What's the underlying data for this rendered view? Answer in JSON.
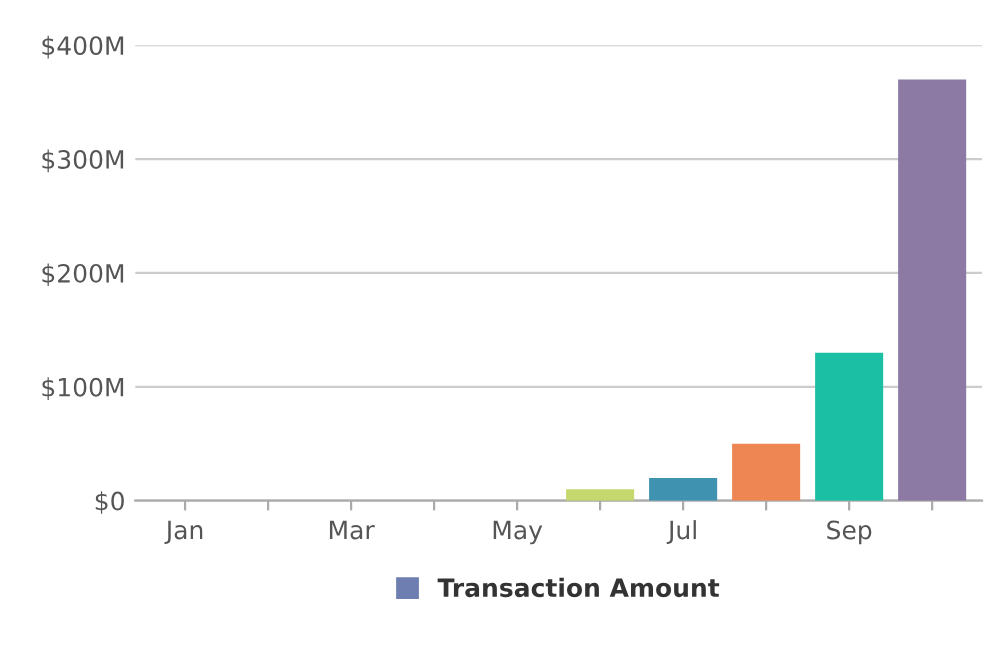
{
  "chart_data": {
    "type": "bar",
    "categories": [
      "Jan",
      null,
      "Mar",
      null,
      "May",
      null,
      "Jul",
      null,
      "Sep",
      null
    ],
    "series": [
      {
        "name": "Transaction Amount",
        "color": "#6f7eb0",
        "colors": [
          "#6f7eb0",
          "#6f7eb0",
          "#6f7eb0",
          "#6f7eb0",
          "#6f7eb0",
          "#c5d86d",
          "#3f93b0",
          "#ee8653",
          "#1bbfa3",
          "#8d7aa4"
        ],
        "values": [
          0,
          0,
          0,
          0,
          0,
          10,
          20,
          50,
          130,
          370
        ]
      }
    ],
    "ylim": [
      0,
      400
    ],
    "yticks": [
      {
        "value": 0,
        "label": "$0"
      },
      {
        "value": 100,
        "label": "$100M"
      },
      {
        "value": 200,
        "label": "$200M"
      },
      {
        "value": 300,
        "label": "$300M"
      },
      {
        "value": 400,
        "label": "$400M"
      }
    ],
    "grid": "y",
    "legend": "bottom"
  }
}
